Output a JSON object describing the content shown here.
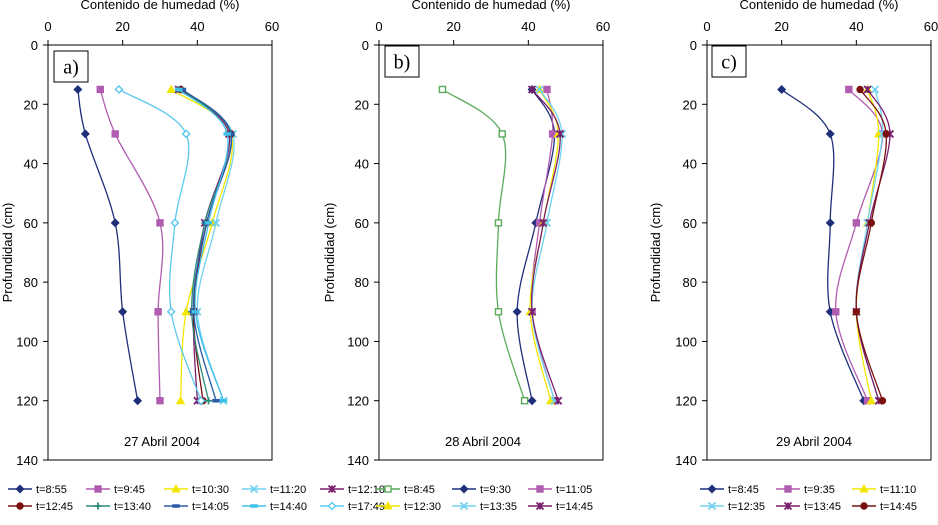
{
  "chart_data": [
    {
      "type": "line",
      "panel_label": "a)",
      "date_label": "27 Abril 2004",
      "title": "",
      "xlabel": "Contenido de humedad (%)",
      "ylabel": "Profundidad (cm)",
      "xlim": [
        0,
        60
      ],
      "ylim": [
        0,
        140
      ],
      "y_inverted": true,
      "x_axis_position": "top",
      "grid": false,
      "x_ticks": [
        0,
        20,
        40,
        60
      ],
      "y_ticks": [
        0,
        20,
        40,
        60,
        80,
        100,
        120,
        140
      ],
      "depths": [
        15,
        30,
        60,
        90,
        120
      ],
      "legend_position": "bottom",
      "legend_columns": 5,
      "series": [
        {
          "name": "t=8:55",
          "color": "#1f2f7a",
          "marker": "diamond",
          "filled": true,
          "values": [
            8,
            10,
            18,
            20,
            24
          ]
        },
        {
          "name": "t=9:45",
          "color": "#b05cb0",
          "marker": "square",
          "filled": true,
          "values": [
            14,
            18,
            30,
            29.5,
            30
          ]
        },
        {
          "name": "t=10:30",
          "color": "#f2e600",
          "marker": "triangle",
          "filled": true,
          "values": [
            33,
            49,
            44,
            37,
            35.5
          ]
        },
        {
          "name": "t=11:20",
          "color": "#6fd2f0",
          "marker": "x",
          "filled": false,
          "values": [
            35,
            49.5,
            45,
            40,
            47
          ]
        },
        {
          "name": "t=12:10",
          "color": "#7a1f6e",
          "marker": "star",
          "filled": false,
          "values": [
            35,
            48.5,
            42,
            39,
            40
          ]
        },
        {
          "name": "t=12:45",
          "color": "#7a1010",
          "marker": "circle",
          "filled": true,
          "values": [
            35.5,
            49,
            42.5,
            39,
            41.5
          ]
        },
        {
          "name": "t=13:40",
          "color": "#2a8a7a",
          "marker": "plus",
          "filled": false,
          "values": [
            35,
            49,
            42,
            38.5,
            43
          ]
        },
        {
          "name": "t=14:05",
          "color": "#2a5aa8",
          "marker": "dash",
          "filled": false,
          "values": [
            36,
            49,
            42.5,
            39,
            45
          ]
        },
        {
          "name": "t=14:40",
          "color": "#3fc0e8",
          "marker": "dash",
          "filled": false,
          "values": [
            35,
            48,
            43,
            39.5,
            47
          ]
        },
        {
          "name": "t=17:49",
          "color": "#5ac8ec",
          "marker": "diamond",
          "filled": false,
          "values": [
            19,
            37,
            34,
            33,
            41
          ]
        }
      ]
    },
    {
      "type": "line",
      "panel_label": "b)",
      "date_label": "28  Abril 2004",
      "title": "",
      "xlabel": "Contenido de humedad (%)",
      "ylabel": "Profundidad (cm)",
      "xlim": [
        0,
        60
      ],
      "ylim": [
        0,
        140
      ],
      "y_inverted": true,
      "x_axis_position": "top",
      "grid": false,
      "x_ticks": [
        0,
        20,
        40,
        60
      ],
      "y_ticks": [
        0,
        20,
        40,
        60,
        80,
        100,
        120,
        140
      ],
      "depths": [
        15,
        30,
        60,
        90,
        120
      ],
      "legend_position": "bottom",
      "legend_columns": 3,
      "series": [
        {
          "name": "t=8:45",
          "color": "#5aaa5a",
          "marker": "square",
          "filled": false,
          "values": [
            17,
            33,
            32,
            32,
            39
          ]
        },
        {
          "name": "t=9:30",
          "color": "#1f2f7a",
          "marker": "diamond",
          "filled": true,
          "values": [
            41,
            47,
            42,
            37,
            41
          ]
        },
        {
          "name": "t=11:05",
          "color": "#b05cb0",
          "marker": "square",
          "filled": true,
          "values": [
            45,
            46.5,
            43,
            41,
            47
          ]
        },
        {
          "name": "t=12:30",
          "color": "#f2e600",
          "marker": "triangle",
          "filled": true,
          "values": [
            43,
            48,
            44,
            40.5,
            46
          ]
        },
        {
          "name": "t=13:35",
          "color": "#6fd2f0",
          "marker": "x",
          "filled": false,
          "values": [
            43,
            49,
            45,
            41,
            47
          ]
        },
        {
          "name": "t=14:45",
          "color": "#7a1f6e",
          "marker": "star",
          "filled": false,
          "values": [
            41,
            48.5,
            44,
            41,
            48
          ]
        }
      ]
    },
    {
      "type": "line",
      "panel_label": "c)",
      "date_label": "29  Abril 2004",
      "title": "",
      "xlabel": "Contenido de humedad (%)",
      "ylabel": "Profundidad (cm)",
      "xlim": [
        0,
        60
      ],
      "ylim": [
        0,
        140
      ],
      "y_inverted": true,
      "x_axis_position": "top",
      "grid": false,
      "x_ticks": [
        0,
        20,
        40,
        60
      ],
      "y_ticks": [
        0,
        20,
        40,
        60,
        80,
        100,
        120,
        140
      ],
      "depths": [
        15,
        30,
        60,
        90,
        120
      ],
      "legend_position": "bottom",
      "legend_columns": 3,
      "series": [
        {
          "name": "t=8:45",
          "color": "#1f2f7a",
          "marker": "diamond",
          "filled": true,
          "values": [
            20,
            33,
            33,
            33,
            42
          ]
        },
        {
          "name": "t=9:35",
          "color": "#b05cb0",
          "marker": "square",
          "filled": true,
          "values": [
            38,
            47,
            40,
            34.5,
            43
          ]
        },
        {
          "name": "t=11:10",
          "color": "#f2e600",
          "marker": "triangle",
          "filled": true,
          "values": [
            43,
            46,
            43,
            40,
            44
          ]
        },
        {
          "name": "t=12:35",
          "color": "#6fd2f0",
          "marker": "x",
          "filled": false,
          "values": [
            45,
            47,
            43,
            40,
            46
          ]
        },
        {
          "name": "t=13:45",
          "color": "#7a1f6e",
          "marker": "star",
          "filled": false,
          "values": [
            43,
            49,
            43.5,
            40,
            46
          ]
        },
        {
          "name": "t=14:45",
          "color": "#7a1010",
          "marker": "circle",
          "filled": true,
          "values": [
            41,
            48,
            44,
            40,
            47
          ]
        }
      ]
    }
  ]
}
